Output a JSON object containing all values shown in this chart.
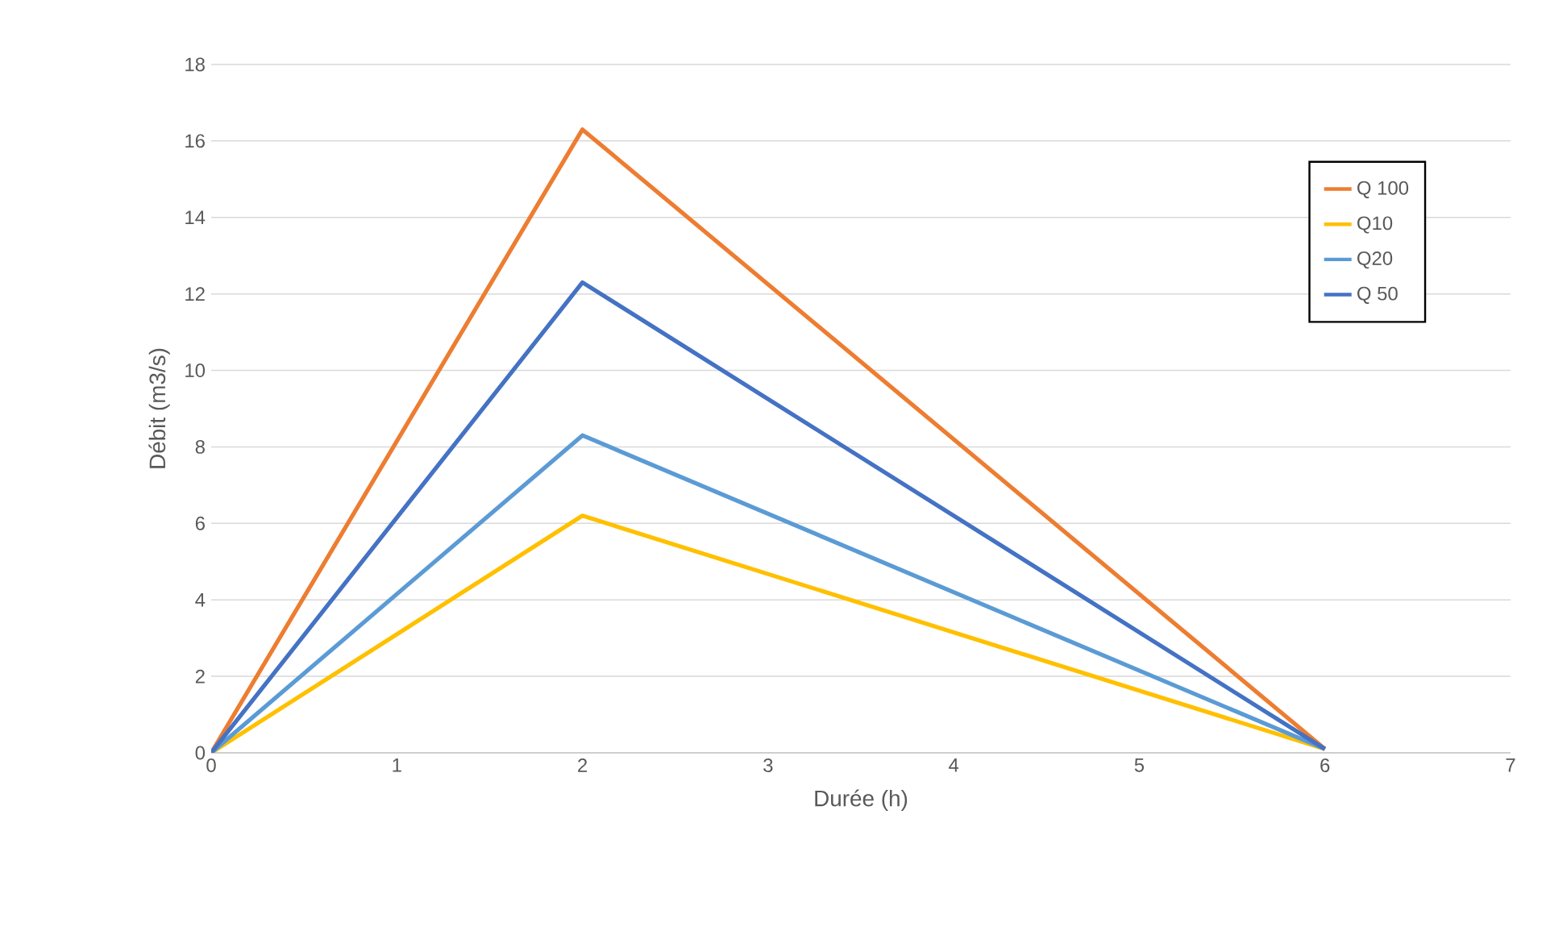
{
  "chart_data": {
    "type": "line",
    "xlabel": "Durée (h)",
    "ylabel": "Débit (m3/s)",
    "x": [
      0,
      2,
      6
    ],
    "series": [
      {
        "name": "Q 100",
        "color": "#ed7d31",
        "values": [
          0,
          16.3,
          0.1
        ]
      },
      {
        "name": "Q10",
        "color": "#ffc000",
        "values": [
          0,
          6.2,
          0.1
        ]
      },
      {
        "name": "Q20",
        "color": "#5b9bd5",
        "values": [
          0,
          8.3,
          0.1
        ]
      },
      {
        "name": "Q 50",
        "color": "#4472c4",
        "values": [
          0,
          12.3,
          0.1
        ]
      }
    ],
    "xlim": [
      0,
      7
    ],
    "ylim": [
      0,
      18
    ],
    "xticks": [
      0,
      1,
      2,
      3,
      4,
      5,
      6,
      7
    ],
    "yticks": [
      0,
      2,
      4,
      6,
      8,
      10,
      12,
      14,
      16,
      18
    ],
    "grid": "y",
    "legend": "top right",
    "marker": "none",
    "line_style": "solid"
  }
}
